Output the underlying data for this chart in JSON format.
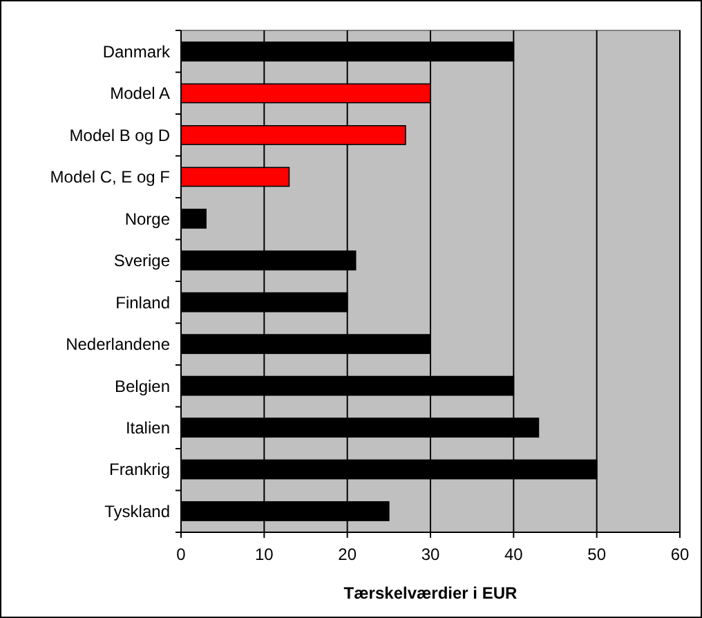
{
  "chart_data": {
    "type": "bar",
    "orientation": "horizontal",
    "xlabel": "Tærskelværdier i EUR",
    "categories": [
      "Danmark",
      "Model A",
      "Model B og D",
      "Model C, E og F",
      "Norge",
      "Sverige",
      "Finland",
      "Nederlandene",
      "Belgien",
      "Italien",
      "Frankrig",
      "Tyskland"
    ],
    "values": [
      40,
      30,
      27,
      13,
      3,
      21,
      20,
      30,
      40,
      43,
      50,
      25
    ],
    "colors": [
      "#000000",
      "#ff0000",
      "#ff0000",
      "#ff0000",
      "#000000",
      "#000000",
      "#000000",
      "#000000",
      "#000000",
      "#000000",
      "#000000",
      "#000000"
    ],
    "xlim": [
      0,
      60
    ],
    "xticks": [
      0,
      10,
      20,
      30,
      40,
      50,
      60
    ],
    "grid": "x"
  }
}
